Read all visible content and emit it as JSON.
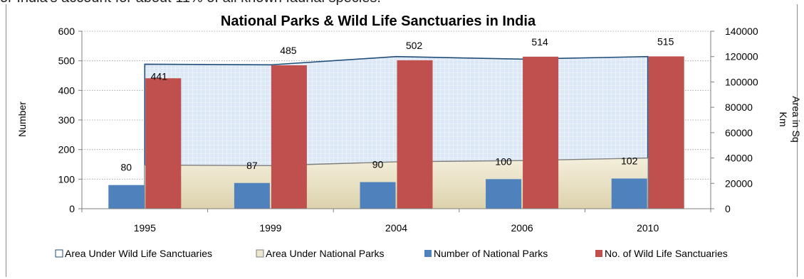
{
  "page": {
    "top_fragment": "or India's account for about 11% of all known faunal species."
  },
  "chart_data": {
    "type": "bar",
    "title": "National Parks & Wild Life Sanctuaries in India",
    "categories": [
      "1995",
      "1999",
      "2004",
      "2006",
      "2010"
    ],
    "ylabel": "Number",
    "y2label_line1": "Area in Sq",
    "y2label_line2": "Km",
    "ylim": [
      0,
      600
    ],
    "y2lim": [
      0,
      140000
    ],
    "yticks": [
      "0",
      "100",
      "200",
      "300",
      "400",
      "500",
      "600"
    ],
    "y2ticks": [
      "0",
      "20000",
      "40000",
      "60000",
      "80000",
      "100000",
      "120000",
      "140000"
    ],
    "grid": "horizontal dotted",
    "legend_position": "bottom",
    "series": [
      {
        "name": "Area Under Wild Life Sanctuaries",
        "type": "area",
        "axis": "secondary",
        "values": [
          114000,
          113500,
          120000,
          118000,
          120000
        ],
        "color": "#1f4e79",
        "fill": "#dce8f5"
      },
      {
        "name": "Area Under National Parks",
        "type": "area",
        "axis": "secondary",
        "values": [
          34500,
          34000,
          37000,
          38000,
          40000
        ],
        "color": "#7f7f7f",
        "fill": "#ece6cf"
      },
      {
        "name": "Number of National Parks",
        "type": "bar",
        "axis": "primary",
        "values": [
          80,
          87,
          90,
          100,
          102
        ],
        "labels": [
          "80",
          "87",
          "90",
          "100",
          "102"
        ],
        "color": "#4f81bd"
      },
      {
        "name": "No. of Wild Life Sanctuaries",
        "type": "bar",
        "axis": "primary",
        "values": [
          441,
          485,
          502,
          514,
          515
        ],
        "labels": [
          "441",
          "485",
          "502",
          "514",
          "515"
        ],
        "color": "#c0504d"
      }
    ]
  }
}
